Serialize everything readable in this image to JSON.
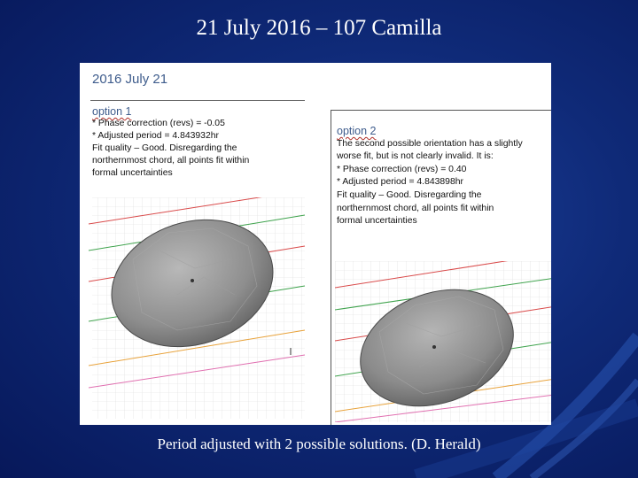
{
  "slide": {
    "title": "21 July 2016 – 107 Camilla",
    "caption": "Period adjusted with 2 possible solutions.  (D. Herald)"
  },
  "panel": {
    "heading": "2016 July 21",
    "option1": {
      "title": "option 1",
      "lines": [
        "* Phase correction (revs) = -0.05",
        "* Adjusted period = 4.843932hr",
        "Fit quality – Good. Disregarding the",
        "northernmost chord, all points fit within",
        "formal uncertainties"
      ]
    },
    "option2": {
      "title": "option 2",
      "lines": [
        "The second possible orientation has a slightly",
        "worse fit, but is not clearly invalid. It is:",
        "* Phase correction (revs) = 0.40",
        "* Adjusted period = 4.843898hr",
        "Fit quality – Good. Disregarding the",
        "northernmost chord, all points fit within",
        "formal uncertainties"
      ]
    },
    "colors": {
      "heading": "#3e5c8c",
      "shape_fill": "#8c8c8c",
      "chord_red": "#d94a4a",
      "chord_green": "#3fa34d",
      "chord_pink": "#e06fb0",
      "chord_orange": "#e8a23a"
    }
  }
}
